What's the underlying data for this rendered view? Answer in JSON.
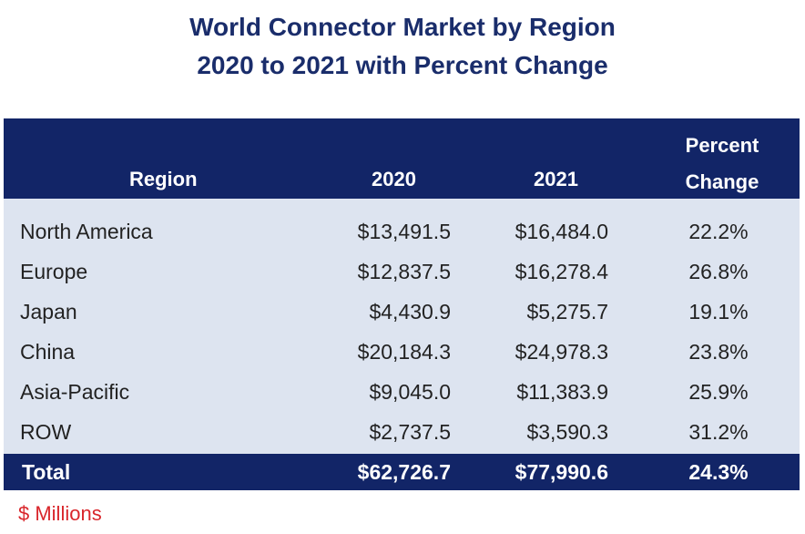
{
  "title": {
    "line1": "World Connector Market by Region",
    "line2": "2020 to 2021 with Percent Change"
  },
  "table": {
    "headers": {
      "region": "Region",
      "y2020": "2020",
      "y2021": "2021",
      "percent": "Percent",
      "change": "Change"
    },
    "rows": [
      {
        "region": "North America",
        "y2020": "$13,491.5",
        "y2021": "$16,484.0",
        "pct": "22.2%"
      },
      {
        "region": "Europe",
        "y2020": "$12,837.5",
        "y2021": "$16,278.4",
        "pct": "26.8%"
      },
      {
        "region": "Japan",
        "y2020": "$4,430.9",
        "y2021": "$5,275.7",
        "pct": "19.1%"
      },
      {
        "region": "China",
        "y2020": "$20,184.3",
        "y2021": "$24,978.3",
        "pct": "23.8%"
      },
      {
        "region": "Asia-Pacific",
        "y2020": "$9,045.0",
        "y2021": "$11,383.9",
        "pct": "25.9%"
      },
      {
        "region": "ROW",
        "y2020": "$2,737.5",
        "y2021": "$3,590.3",
        "pct": "31.2%"
      }
    ],
    "total": {
      "region": "Total",
      "y2020": "$62,726.7",
      "y2021": "$77,990.6",
      "pct": "24.3%"
    }
  },
  "footnote": "$ Millions",
  "colors": {
    "title": "#1a2d6b",
    "header_bg": "#122567",
    "body_bg": "#dde4f0",
    "footnote": "#d9262b"
  }
}
